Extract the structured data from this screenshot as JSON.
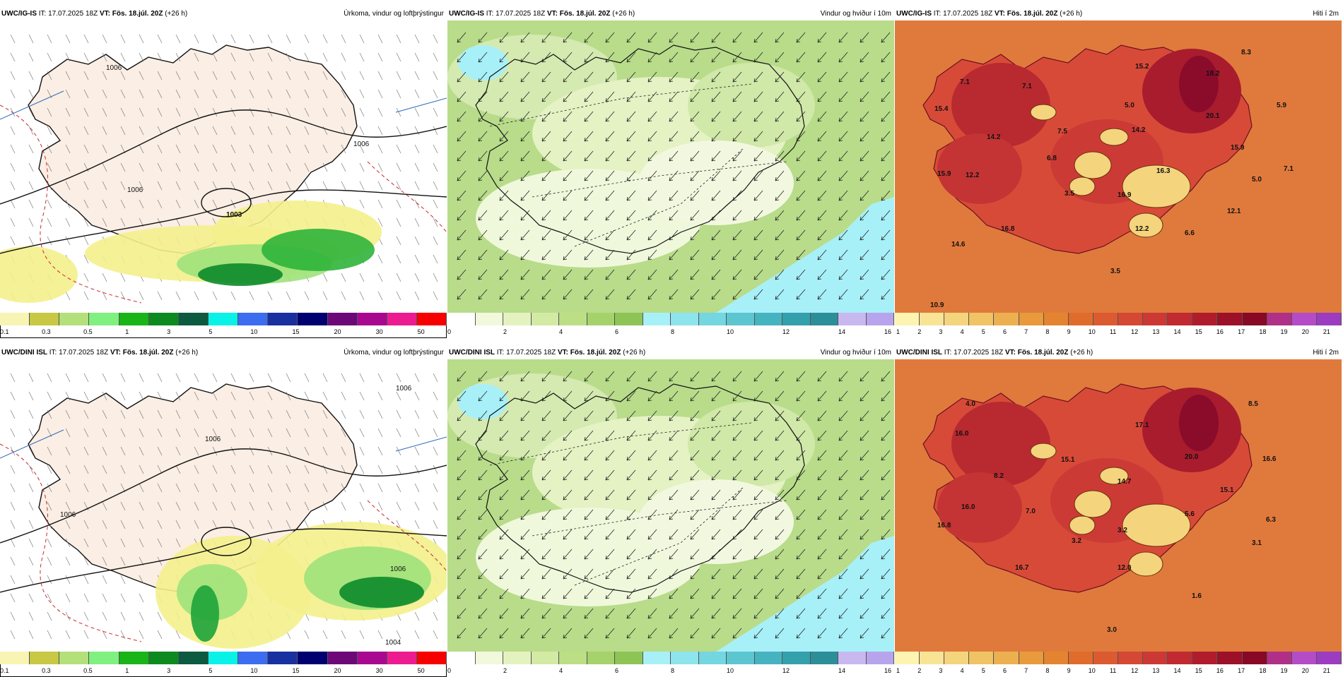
{
  "panels": [
    {
      "id": "r1-precip",
      "model": "UWC/IG-IS",
      "it_label": "IT:",
      "it": "17.07.2025 18Z",
      "vt_label": "VT:",
      "vt": "Fös. 18.júl. 20Z",
      "lead": "(+26 h)",
      "title": "Úrkoma, vindur og loftþrýstingur",
      "type": "precip",
      "pressure_labels": [
        "1006",
        "1006",
        "1006",
        "1003"
      ],
      "cbar": {
        "colors": [
          "#f8f4b4",
          "#c8c844",
          "#b4e07c",
          "#80f080",
          "#18b418",
          "#0c8a20",
          "#0c5a40",
          "#08f2e8",
          "#3c6cf0",
          "#1830a0",
          "#000070",
          "#6c0878",
          "#a80890",
          "#ec1c90",
          "#f80000"
        ],
        "ticks": [
          "0.1",
          "0.3",
          "0.5",
          "1",
          "3",
          "5",
          "10",
          "15",
          "20",
          "30",
          "50"
        ]
      }
    },
    {
      "id": "r1-wind",
      "model": "UWC/IG-IS",
      "it_label": "IT:",
      "it": "17.07.2025 18Z",
      "vt_label": "VT:",
      "vt": "Fös. 18.júl. 20Z",
      "lead": "(+26 h)",
      "title": "Vindur og hviður í 10m",
      "type": "wind",
      "cbar": {
        "colors": [
          "#ffffff",
          "#f2f8dc",
          "#e4f2c0",
          "#d2eaa4",
          "#bcdf86",
          "#a6d26c",
          "#8ec456",
          "#a8f0f8",
          "#8ee4ec",
          "#74d6e0",
          "#5cc6d0",
          "#46b4c0",
          "#34a0ac",
          "#2c8e98",
          "#c8b8f0",
          "#b8a4ec"
        ],
        "ticks": [
          "0",
          "2",
          "4",
          "6",
          "8",
          "10",
          "12",
          "14",
          "16"
        ]
      }
    },
    {
      "id": "r1-temp",
      "model": "UWC/IG-IS",
      "it_label": "IT:",
      "it": "17.07.2025 18Z",
      "vt_label": "VT:",
      "vt": "Fös. 18.júl. 20Z",
      "lead": "(+26 h)",
      "title": "Hiti í 2m",
      "type": "temp",
      "temp_labels": [
        "8.3",
        "15.2",
        "18.2",
        "7.1",
        "7.1",
        "15.4",
        "5.0",
        "20.1",
        "5.9",
        "14.2",
        "7.5",
        "14.2",
        "15.9",
        "6.8",
        "16.3",
        "15.9",
        "12.2",
        "3.5",
        "16.9",
        "5.0",
        "7.1",
        "12.1",
        "16.8",
        "12.2",
        "6.6",
        "14.6",
        "3.5",
        "10.9"
      ],
      "cbar": {
        "colors": [
          "#fcf4b0",
          "#f8e494",
          "#f4d47c",
          "#f0c464",
          "#ecb050",
          "#e89a3c",
          "#e48430",
          "#e06c2c",
          "#dc5a30",
          "#d44834",
          "#cc3834",
          "#c02a30",
          "#b01c2c",
          "#9c1028",
          "#880826",
          "#b03088",
          "#b44cc8",
          "#9c3cc0"
        ],
        "ticks": [
          "1",
          "2",
          "3",
          "4",
          "5",
          "6",
          "7",
          "8",
          "9",
          "10",
          "11",
          "12",
          "13",
          "14",
          "15",
          "16",
          "17",
          "18",
          "19",
          "20",
          "21"
        ]
      }
    },
    {
      "id": "r2-precip",
      "model": "UWC/DINI ISL",
      "it_label": "IT:",
      "it": "17.07.2025 18Z",
      "vt_label": "VT:",
      "vt": "Fös. 18.júl. 20Z",
      "lead": "(+26 h)",
      "title": "Úrkoma, vindur og loftþrýstingur",
      "type": "precip",
      "pressure_labels": [
        "1006",
        "1006",
        "1006",
        "1006",
        "1004"
      ],
      "cbar": {
        "colors": [
          "#f8f4b4",
          "#c8c844",
          "#b4e07c",
          "#80f080",
          "#18b418",
          "#0c8a20",
          "#0c5a40",
          "#08f2e8",
          "#3c6cf0",
          "#1830a0",
          "#000070",
          "#6c0878",
          "#a80890",
          "#ec1c90",
          "#f80000"
        ],
        "ticks": [
          "0.1",
          "0.3",
          "0.5",
          "1",
          "3",
          "5",
          "10",
          "15",
          "20",
          "30",
          "50"
        ]
      }
    },
    {
      "id": "r2-wind",
      "model": "UWC/DINI ISL",
      "it_label": "IT:",
      "it": "17.07.2025 18Z",
      "vt_label": "VT:",
      "vt": "Fös. 18.júl. 20Z",
      "lead": "(+26 h)",
      "title": "Vindur og hviður í 10m",
      "type": "wind",
      "cbar": {
        "colors": [
          "#ffffff",
          "#f2f8dc",
          "#e4f2c0",
          "#d2eaa4",
          "#bcdf86",
          "#a6d26c",
          "#8ec456",
          "#a8f0f8",
          "#8ee4ec",
          "#74d6e0",
          "#5cc6d0",
          "#46b4c0",
          "#34a0ac",
          "#2c8e98",
          "#c8b8f0",
          "#b8a4ec"
        ],
        "ticks": [
          "0",
          "2",
          "4",
          "6",
          "8",
          "10",
          "12",
          "14",
          "16"
        ]
      }
    },
    {
      "id": "r2-temp",
      "model": "UWC/DINI ISL",
      "it_label": "IT:",
      "it": "17.07.2025 18Z",
      "vt_label": "VT:",
      "vt": "Fös. 18.júl. 20Z",
      "lead": "(+26 h)",
      "title": "Hiti í 2m",
      "type": "temp",
      "temp_labels": [
        "4.0",
        "8.5",
        "17.1",
        "16.0",
        "20.0",
        "16.6",
        "15.1",
        "8.2",
        "14.7",
        "15.1",
        "16.0",
        "7.0",
        "5.6",
        "6.3",
        "16.8",
        "3.2",
        "3.2",
        "3.1",
        "16.7",
        "12.0",
        "1.6",
        "3.0"
      ],
      "cbar": {
        "colors": [
          "#fcf4b0",
          "#f8e494",
          "#f4d47c",
          "#f0c464",
          "#ecb050",
          "#e89a3c",
          "#e48430",
          "#e06c2c",
          "#dc5a30",
          "#d44834",
          "#cc3834",
          "#c02a30",
          "#b01c2c",
          "#9c1028",
          "#880826",
          "#b03088",
          "#b44cc8",
          "#9c3cc0"
        ],
        "ticks": [
          "1",
          "2",
          "3",
          "4",
          "5",
          "6",
          "7",
          "8",
          "9",
          "10",
          "11",
          "12",
          "13",
          "14",
          "15",
          "16",
          "17",
          "18",
          "19",
          "20",
          "21"
        ]
      }
    }
  ]
}
